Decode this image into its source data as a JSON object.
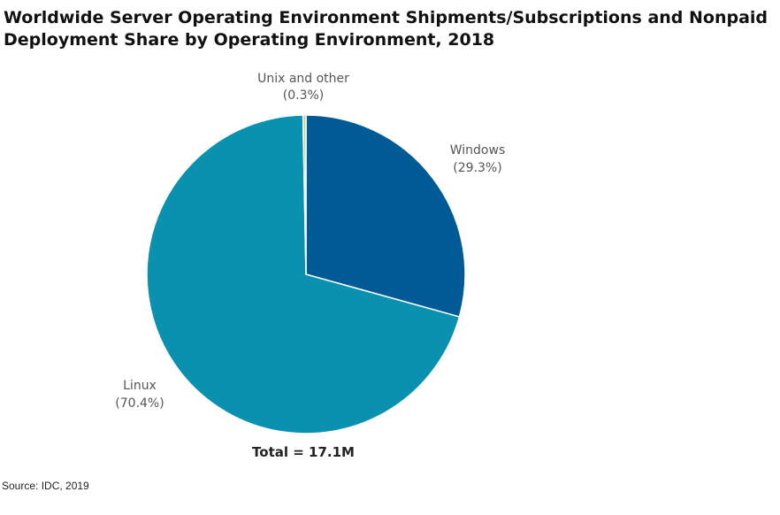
{
  "chart_data": {
    "type": "pie",
    "title_lines": [
      "Worldwide Server Operating Environment Shipments/Subscriptions and Nonpaid",
      "Deployment Share by Operating Environment, 2018"
    ],
    "slices": [
      {
        "name": "Windows",
        "value": 29.3,
        "label": "(29.3%)",
        "color": "#005a96"
      },
      {
        "name": "Linux",
        "value": 70.4,
        "label": "(70.4%)",
        "color": "#0a91b0"
      },
      {
        "name": "Unix and other",
        "value": 0.3,
        "label": "(0.3%)",
        "color": "#b5d88a"
      }
    ],
    "start_angle": "12 o'clock, clockwise",
    "total_label": "Total = 17.1M",
    "source": "Source: IDC, 2019"
  }
}
